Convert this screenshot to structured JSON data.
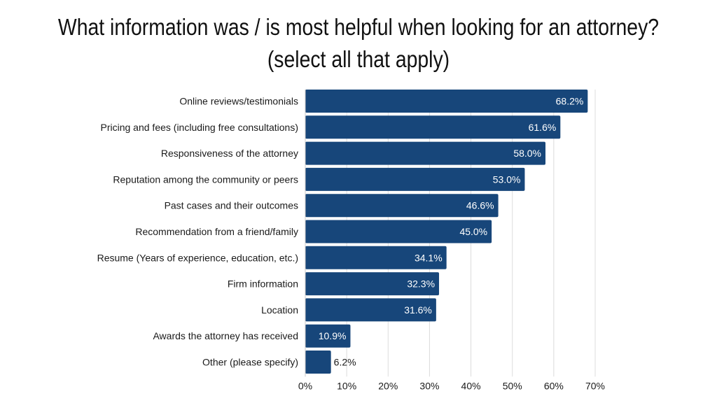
{
  "chart_data": {
    "type": "bar",
    "orientation": "horizontal",
    "title_line1": "What information was / is most helpful when looking for an attorney?",
    "title_line2": "(select all that apply)",
    "categories": [
      "Online reviews/testimonials",
      "Pricing and fees (including free consultations)",
      "Responsiveness of the attorney",
      "Reputation among the community or peers",
      "Past cases and their outcomes",
      "Recommendation from a friend/family",
      "Resume (Years of experience, education, etc.)",
      "Firm information",
      "Location",
      "Awards the attorney has received",
      "Other (please specify)"
    ],
    "values": [
      68.2,
      61.6,
      58.0,
      53.0,
      46.6,
      45.0,
      34.1,
      32.3,
      31.6,
      10.9,
      6.2
    ],
    "value_labels": [
      "68.2%",
      "61.6%",
      "58.0%",
      "53.0%",
      "46.6%",
      "45.0%",
      "34.1%",
      "32.3%",
      "31.6%",
      "10.9%",
      "6.2%"
    ],
    "xlim": [
      0,
      70
    ],
    "x_ticks": [
      "0%",
      "10%",
      "20%",
      "30%",
      "40%",
      "50%",
      "60%",
      "70%"
    ],
    "grid": true,
    "bar_color": "#17467a",
    "label_inside_color": "#ffffff",
    "label_outside_color": "#1a1a1a"
  }
}
